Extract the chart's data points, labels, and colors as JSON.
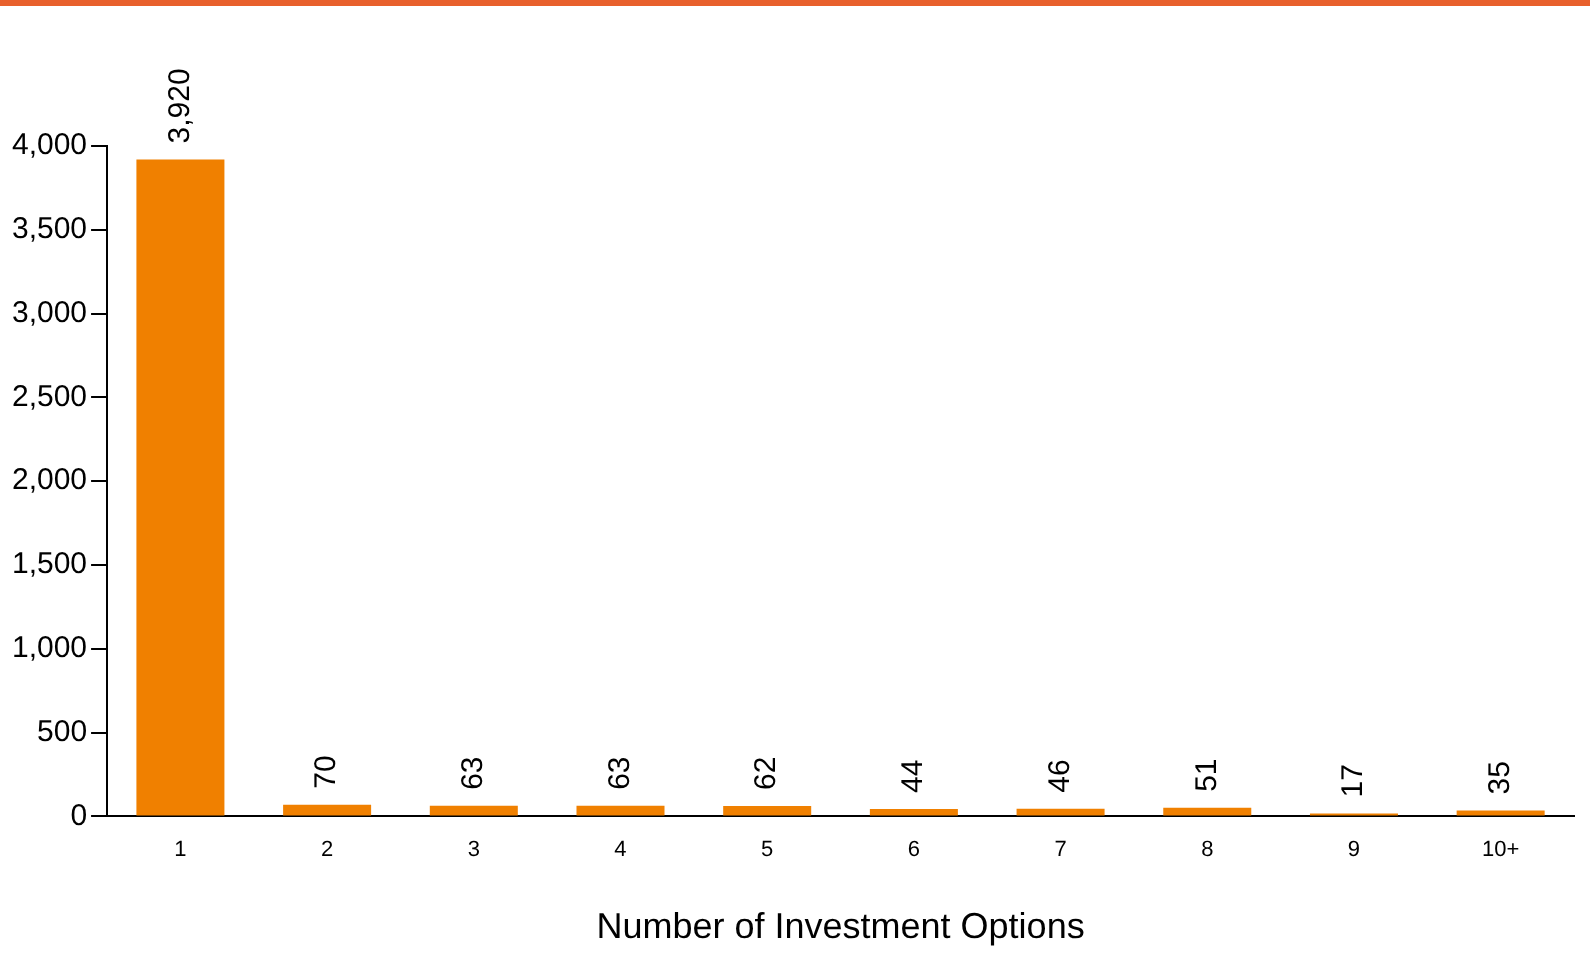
{
  "chart_data": {
    "type": "bar",
    "xlabel": "Number of Investment Options",
    "categories": [
      "1",
      "2",
      "3",
      "4",
      "5",
      "6",
      "7",
      "8",
      "9",
      "10+"
    ],
    "values": [
      3920,
      70,
      63,
      63,
      62,
      44,
      46,
      51,
      17,
      35
    ],
    "value_labels": [
      "3,920",
      "70",
      "63",
      "63",
      "62",
      "44",
      "46",
      "51",
      "17",
      "35"
    ],
    "color": "#f08000",
    "ylim": [
      0,
      4000
    ],
    "yticks": [
      0,
      500,
      {
        "value": 1000,
        "label": "1,000"
      },
      {
        "value": 1500,
        "label": "1,500"
      },
      {
        "value": 2000,
        "label": "2,000"
      },
      {
        "value": 2500,
        "label": "2,500"
      },
      {
        "value": 3000,
        "label": "3,000"
      },
      {
        "value": 3500,
        "label": "3,500"
      },
      {
        "value": 4000,
        "label": "4,000"
      }
    ],
    "grid": false,
    "legend": false
  }
}
